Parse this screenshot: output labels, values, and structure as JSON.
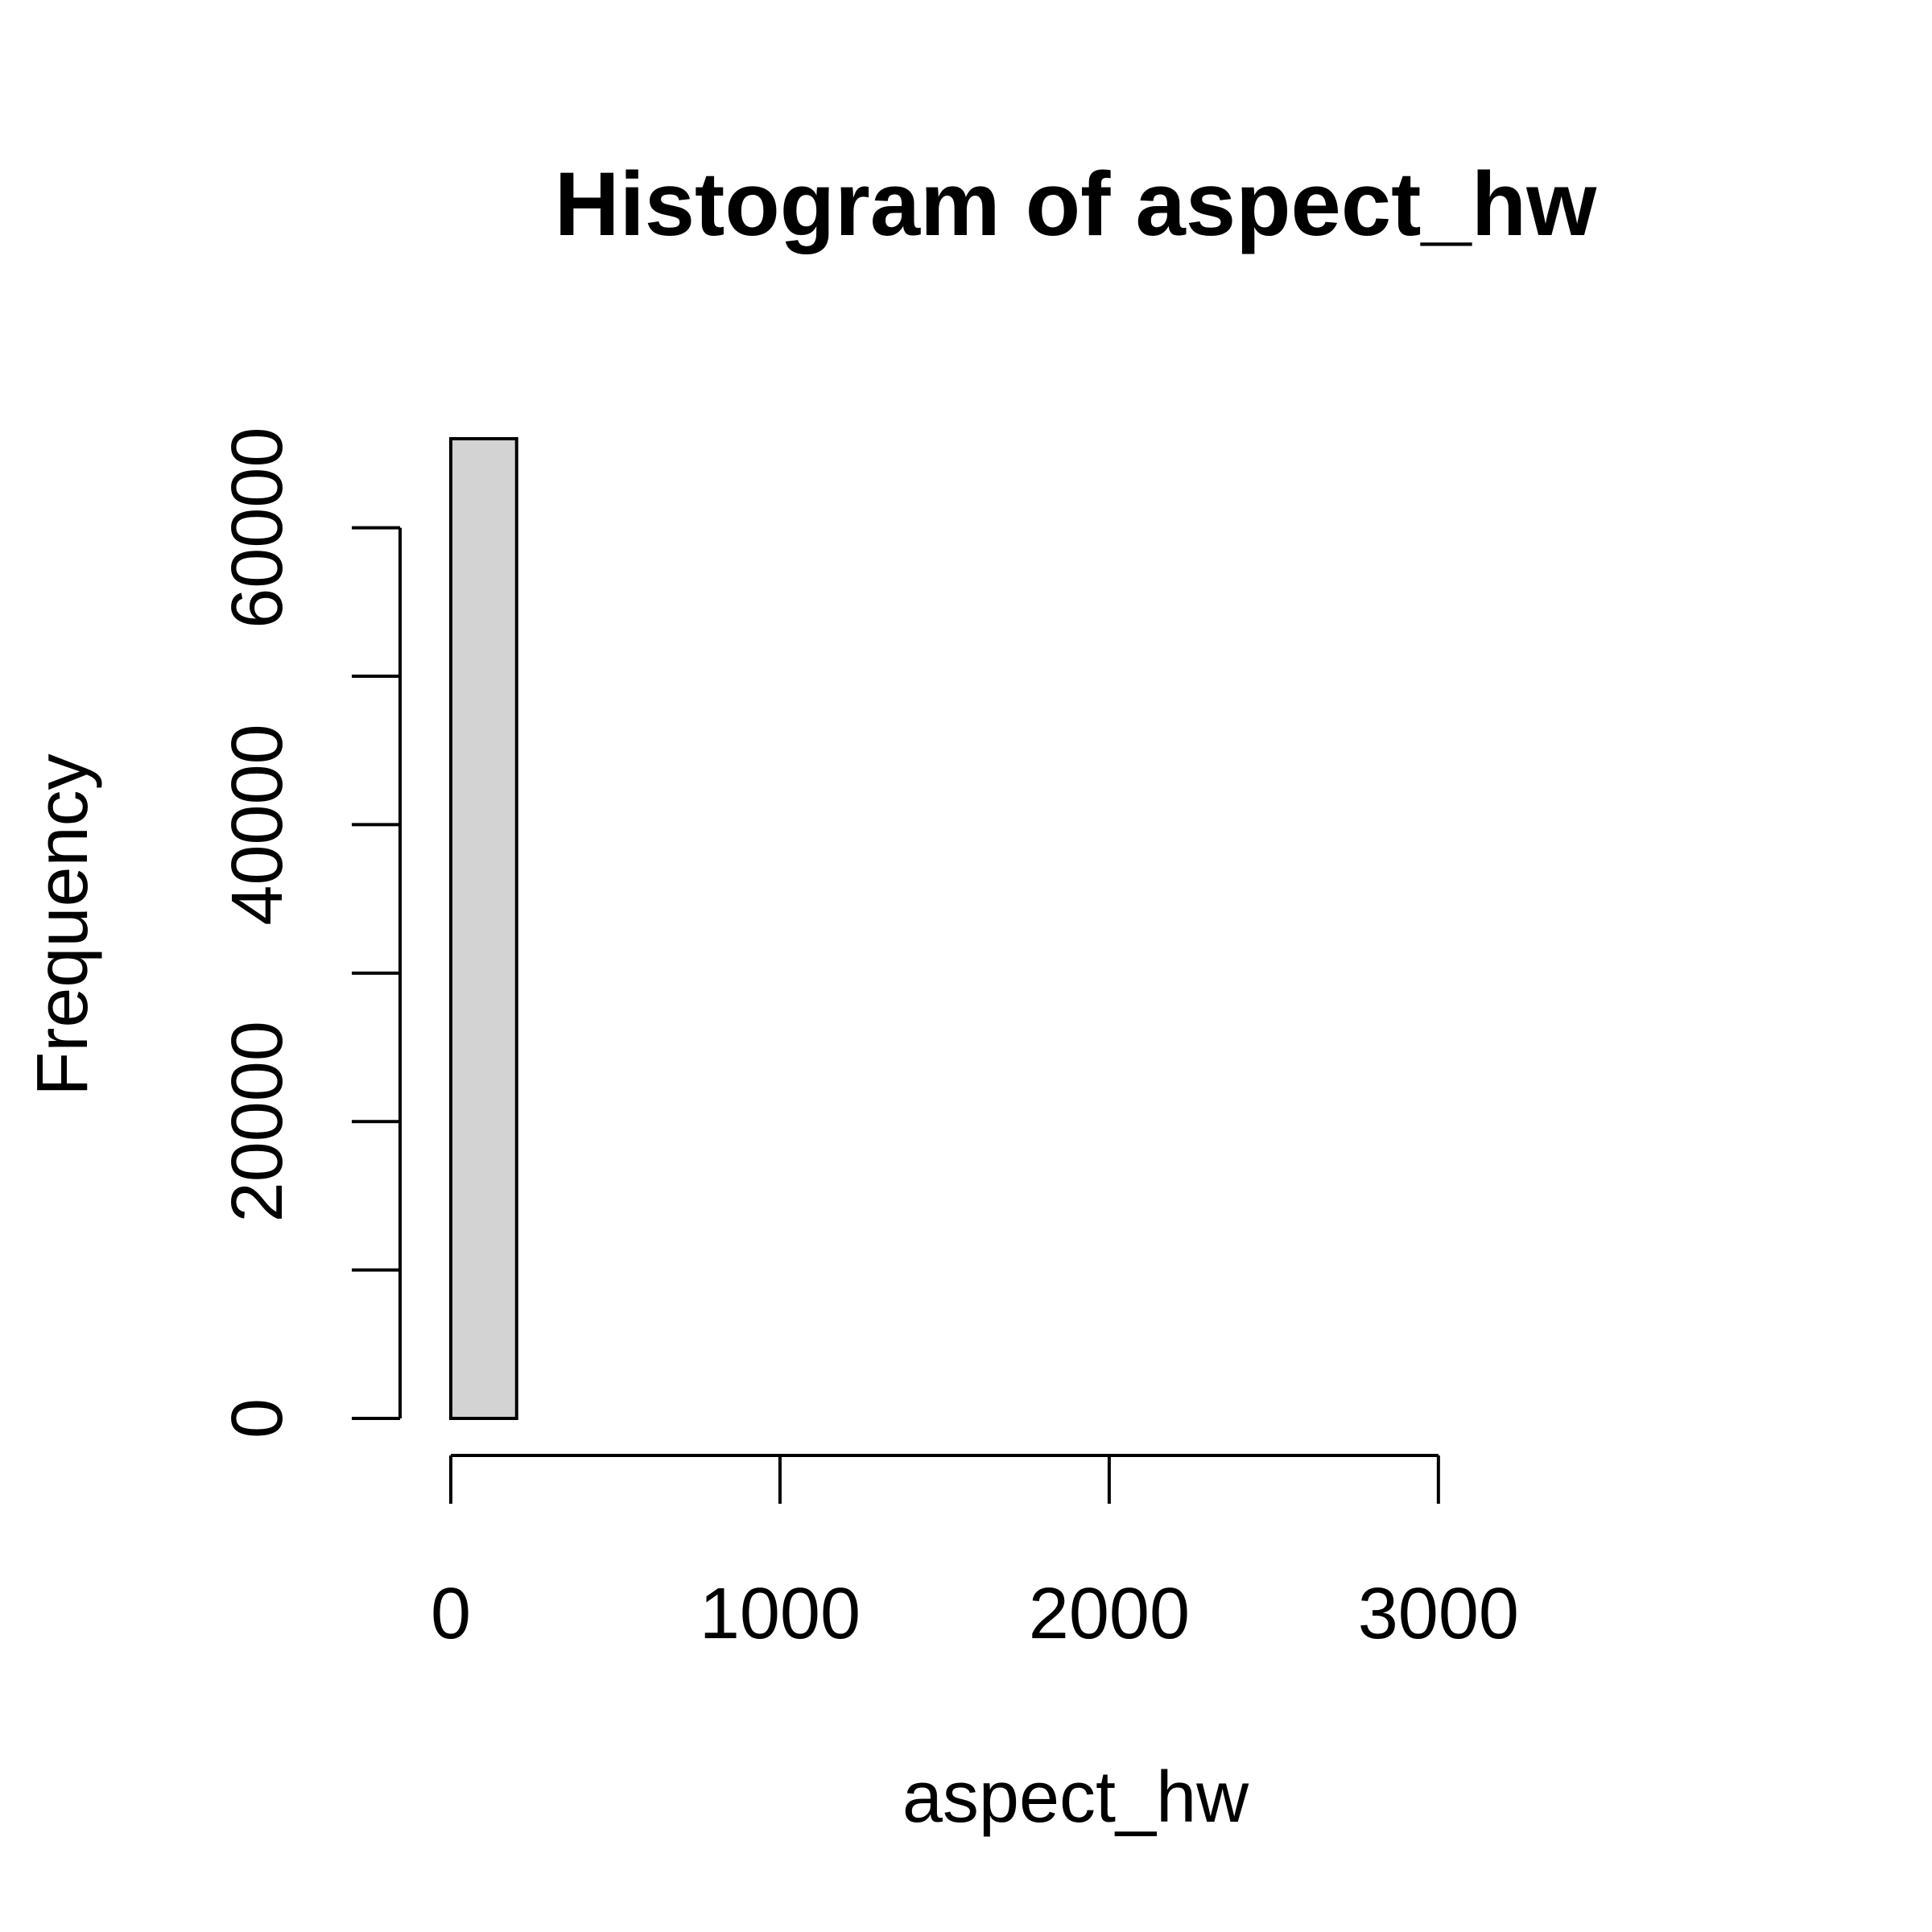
{
  "chart_data": {
    "type": "bar",
    "title": "Histogram of aspect_hw",
    "xlabel": "aspect_hw",
    "ylabel": "Frequency",
    "xlim": [
      0,
      3800
    ],
    "ylim": [
      0,
      66000
    ],
    "x_ticks": [
      0,
      1000,
      2000,
      3000
    ],
    "x_tick_labels": [
      "0",
      "1000",
      "2000",
      "3000"
    ],
    "y_ticks": [
      0,
      10000,
      20000,
      30000,
      40000,
      50000,
      60000
    ],
    "y_tick_labels": [
      "0",
      "",
      "20000",
      "",
      "40000",
      "",
      "60000"
    ],
    "bins": [
      {
        "start": 0,
        "end": 200,
        "count": 66000
      },
      {
        "start": 200,
        "end": 400,
        "count": 0
      },
      {
        "start": 400,
        "end": 600,
        "count": 0
      },
      {
        "start": 600,
        "end": 800,
        "count": 0
      },
      {
        "start": 800,
        "end": 1000,
        "count": 0
      },
      {
        "start": 1000,
        "end": 1200,
        "count": 0
      },
      {
        "start": 1200,
        "end": 1400,
        "count": 0
      },
      {
        "start": 1400,
        "end": 1600,
        "count": 0
      },
      {
        "start": 1600,
        "end": 1800,
        "count": 0
      },
      {
        "start": 1800,
        "end": 2000,
        "count": 0
      },
      {
        "start": 2000,
        "end": 2200,
        "count": 0
      },
      {
        "start": 2200,
        "end": 2400,
        "count": 0
      },
      {
        "start": 2400,
        "end": 2600,
        "count": 0
      },
      {
        "start": 2600,
        "end": 2800,
        "count": 0
      },
      {
        "start": 2800,
        "end": 3000,
        "count": 0
      },
      {
        "start": 3000,
        "end": 3200,
        "count": 0
      },
      {
        "start": 3200,
        "end": 3400,
        "count": 0
      },
      {
        "start": 3400,
        "end": 3600,
        "count": 0
      },
      {
        "start": 3600,
        "end": 3800,
        "count": 0
      }
    ],
    "bar_fill": "#d3d3d3",
    "grid": false
  }
}
